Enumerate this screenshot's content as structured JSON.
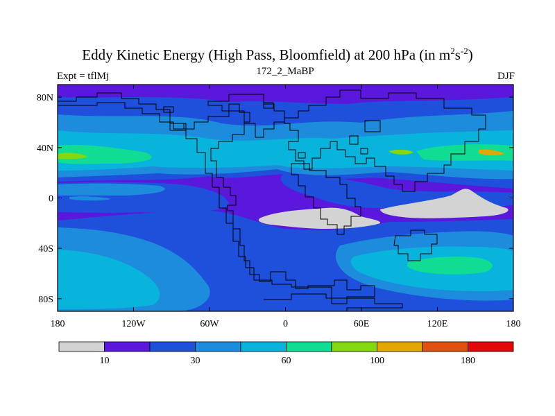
{
  "map": {
    "title_main": "Eddy Kinetic Energy (High Pass, Bloomfield) at 200 hPa (in m",
    "title_sup1": "2",
    "title_mid": "s",
    "title_sup2": "-2",
    "title_end": ")",
    "subtitle_left": "Expt = tflMj",
    "subtitle_center": "172_2_MaBP",
    "subtitle_right": "DJF",
    "lon_ticks": [
      "180",
      "120W",
      "60W",
      "0",
      "60E",
      "120E",
      "180"
    ],
    "lon_values": [
      -180,
      -120,
      -60,
      0,
      60,
      120,
      180
    ],
    "lat_ticks": [
      "80N",
      "40N",
      "0",
      "40S",
      "80S"
    ],
    "lat_values": [
      80,
      40,
      0,
      -40,
      -80
    ],
    "lon_range": [
      -180,
      180
    ],
    "lat_range": [
      -90,
      90
    ],
    "colors": {
      "missing": "#d3d3d3",
      "l1": "#5a18dc",
      "l2": "#1e50dc",
      "l3": "#1e8cdc",
      "l4": "#08b4dc",
      "l5": "#10dc94",
      "l6": "#84d810",
      "l7": "#e0a800",
      "l8": "#e05010",
      "l9": "#e00808"
    }
  },
  "colorbar": {
    "labels": [
      "10",
      "30",
      "60",
      "100",
      "180"
    ],
    "label_positions": [
      1,
      3,
      5,
      7,
      9
    ],
    "segment_count": 10,
    "colors": [
      "#d3d3d3",
      "#5a18dc",
      "#1e50dc",
      "#1e8cdc",
      "#08b4dc",
      "#10dc94",
      "#84d810",
      "#e0a800",
      "#e05010",
      "#e00808"
    ]
  }
}
